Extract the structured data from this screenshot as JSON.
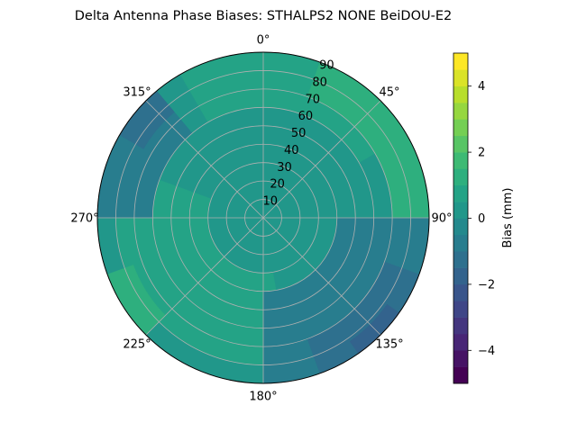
{
  "chart_data": {
    "type": "heatmap",
    "subtype": "polar-filled-contour",
    "title": "Delta Antenna Phase Biases: STHALPS2        NONE BeiDOU-E2",
    "theta_direction": "clockwise",
    "theta_zero": "N",
    "theta_tick_labels": [
      "0°",
      "45°",
      "90°",
      "135°",
      "180°",
      "225°",
      "270°",
      "315°"
    ],
    "theta_tick_values": [
      0,
      45,
      90,
      135,
      180,
      225,
      270,
      315
    ],
    "r_tick_labels": [
      "10",
      "20",
      "30",
      "40",
      "50",
      "60",
      "70",
      "80",
      "90"
    ],
    "r_tick_values": [
      10,
      20,
      30,
      40,
      50,
      60,
      70,
      80,
      90
    ],
    "rlim": [
      0,
      90
    ],
    "grid": true,
    "colorbar": {
      "label": "Bias (mm)",
      "vmin": -5,
      "vmax": 5,
      "levels": [
        -5,
        -4.5,
        -4,
        -3.5,
        -3,
        -2.5,
        -2,
        -1.5,
        -1,
        -0.5,
        0,
        0.5,
        1,
        1.5,
        2,
        2.5,
        3,
        3.5,
        4,
        4.5,
        5
      ],
      "tick_values": [
        -4,
        -2,
        0,
        2,
        4
      ],
      "tick_labels": [
        "−4",
        "−2",
        "0",
        "2",
        "4"
      ],
      "colormap": "viridis"
    },
    "contour_regions": [
      {
        "level_range": [
          0,
          0.5
        ],
        "az_range": [
          0,
          360
        ],
        "elev_range": [
          0,
          90
        ],
        "note": "background"
      },
      {
        "level_range": [
          0.5,
          1
        ],
        "az_range": [
          330,
          60
        ],
        "elev_range": [
          60,
          90
        ]
      },
      {
        "level_range": [
          1,
          2
        ],
        "az_range": [
          20,
          90
        ],
        "elev_range": [
          70,
          90
        ]
      },
      {
        "level_range": [
          0.5,
          1
        ],
        "az_range": [
          170,
          290
        ],
        "elev_range": [
          30,
          80
        ]
      },
      {
        "level_range": [
          1,
          2
        ],
        "az_range": [
          225,
          250
        ],
        "elev_range": [
          75,
          90
        ]
      },
      {
        "level_range": [
          -1,
          0
        ],
        "az_range": [
          270,
          320
        ],
        "elev_range": [
          60,
          90
        ]
      },
      {
        "level_range": [
          -1.5,
          -1
        ],
        "az_range": [
          300,
          320
        ],
        "elev_range": [
          75,
          90
        ]
      },
      {
        "level_range": [
          -1,
          -0.5
        ],
        "az_range": [
          90,
          180
        ],
        "elev_range": [
          40,
          90
        ]
      },
      {
        "level_range": [
          -1.5,
          -1
        ],
        "az_range": [
          110,
          160
        ],
        "elev_range": [
          70,
          90
        ]
      },
      {
        "level_range": [
          -2,
          -1.5
        ],
        "az_range": [
          125,
          145
        ],
        "elev_range": [
          82,
          90
        ]
      }
    ]
  }
}
